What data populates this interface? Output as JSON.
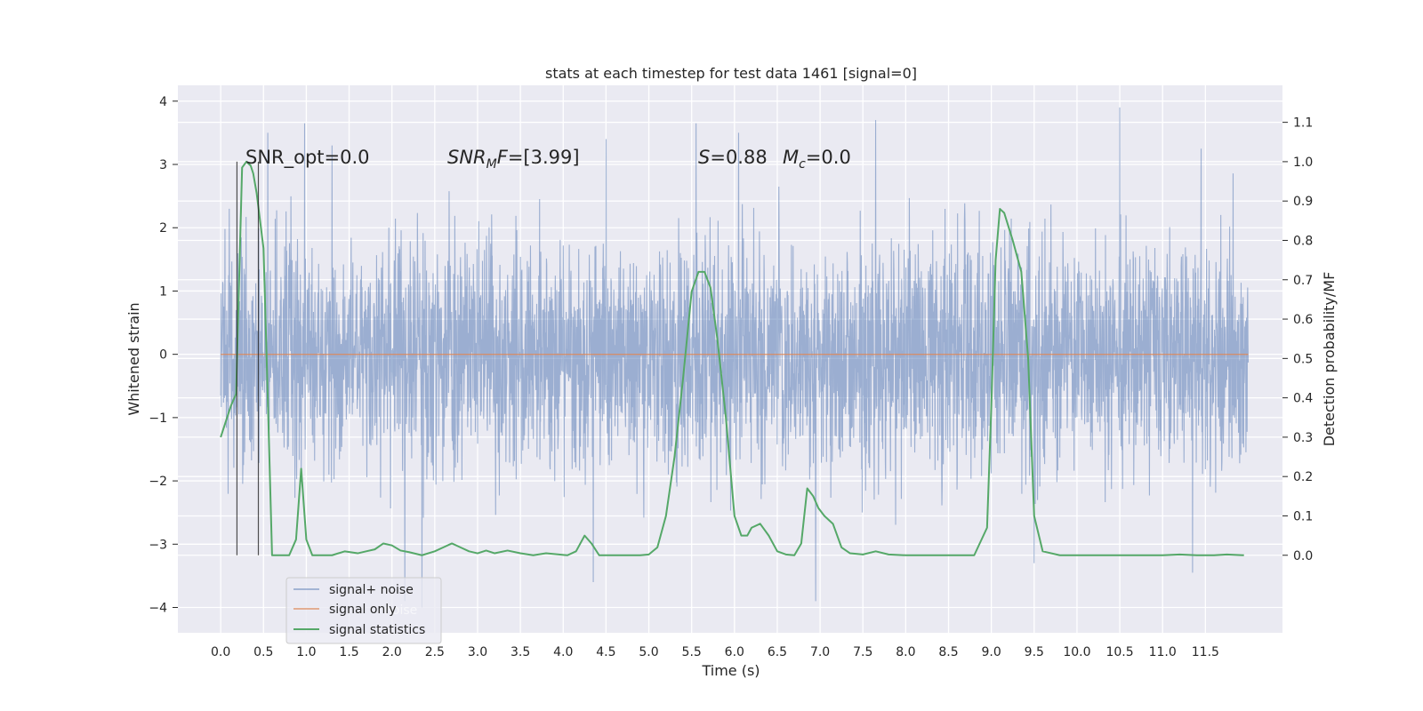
{
  "chart_data": {
    "type": "line",
    "title": "stats at each timestep for test data 1461 [signal=0]",
    "xlabel": "Time (s)",
    "ylabel": "Whitened strain",
    "y2label": "Detection probability/MF",
    "xlim": [
      -0.5,
      12.4
    ],
    "ylim": [
      -4.4,
      4.25
    ],
    "y2lim": [
      -0.197,
      1.194
    ],
    "x_ticks": [
      "0.0",
      "0.5",
      "1.0",
      "1.5",
      "2.0",
      "2.5",
      "3.0",
      "3.5",
      "4.0",
      "4.5",
      "5.0",
      "5.5",
      "6.0",
      "6.5",
      "7.0",
      "7.5",
      "8.0",
      "8.5",
      "9.0",
      "9.5",
      "10.0",
      "10.5",
      "11.0",
      "11.5"
    ],
    "y_ticks": [
      "4",
      "3",
      "2",
      "1",
      "0",
      "−1",
      "−2",
      "−3",
      "−4"
    ],
    "y2_ticks": [
      "1.1",
      "1.0",
      "0.9",
      "0.8",
      "0.7",
      "0.6",
      "0.5",
      "0.4",
      "0.3",
      "0.2",
      "0.1",
      "0.0"
    ],
    "grid": true,
    "legend_position": "lower-left",
    "colors": {
      "signal_noise": "#4c72b0",
      "signal_only": "#dd8452",
      "signal_statistics": "#55a868",
      "background": "#eaeaf2",
      "grid": "#ffffff",
      "vlines": "#262626"
    },
    "series": [
      {
        "name": "signal+ noise",
        "axis": "left",
        "x_range": [
          0.0,
          12.0
        ],
        "envelope_typical": [
          -1.8,
          1.9
        ],
        "peaks": [
          [
            0.1,
            2.3
          ],
          [
            0.55,
            3.5
          ],
          [
            0.98,
            3.65
          ],
          [
            1.3,
            3.3
          ],
          [
            2.15,
            -3.9
          ],
          [
            2.35,
            -4.0
          ],
          [
            4.35,
            -3.5
          ],
          [
            4.5,
            3.4
          ],
          [
            4.35,
            -3.6
          ],
          [
            5.55,
            3.65
          ],
          [
            6.05,
            3.5
          ],
          [
            6.95,
            -3.9
          ],
          [
            7.65,
            3.7
          ],
          [
            9.5,
            -3.3
          ],
          [
            10.5,
            3.9
          ],
          [
            11.35,
            -3.45
          ],
          [
            11.45,
            3.25
          ]
        ]
      },
      {
        "name": "signal only",
        "axis": "left",
        "x": [
          0.0,
          12.0
        ],
        "y": [
          0.0,
          0.0
        ]
      },
      {
        "name": "signal statistics",
        "axis": "right",
        "x": [
          0.0,
          0.12,
          0.18,
          0.25,
          0.3,
          0.35,
          0.38,
          0.42,
          0.46,
          0.5,
          0.55,
          0.6,
          0.66,
          0.7,
          0.8,
          0.88,
          0.94,
          1.0,
          1.07,
          1.15,
          1.3,
          1.45,
          1.6,
          1.7,
          1.8,
          1.9,
          2.0,
          2.1,
          2.2,
          2.35,
          2.5,
          2.6,
          2.7,
          2.8,
          2.9,
          3.0,
          3.1,
          3.2,
          3.35,
          3.5,
          3.65,
          3.8,
          3.95,
          4.05,
          4.15,
          4.25,
          4.33,
          4.42,
          4.52,
          4.7,
          4.9,
          5.0,
          5.1,
          5.2,
          5.3,
          5.4,
          5.5,
          5.58,
          5.65,
          5.72,
          5.8,
          5.9,
          6.0,
          6.08,
          6.15,
          6.2,
          6.3,
          6.4,
          6.5,
          6.6,
          6.7,
          6.78,
          6.85,
          6.92,
          6.98,
          7.05,
          7.15,
          7.25,
          7.35,
          7.5,
          7.65,
          7.8,
          8.0,
          8.5,
          8.8,
          8.95,
          9.0,
          9.05,
          9.1,
          9.15,
          9.25,
          9.35,
          9.43,
          9.5,
          9.6,
          9.8,
          10.2,
          10.7,
          11.0,
          11.2,
          11.4,
          11.6,
          11.75,
          11.95
        ],
        "y": [
          0.3,
          0.38,
          0.41,
          0.985,
          1.0,
          0.99,
          0.97,
          0.92,
          0.85,
          0.78,
          0.4,
          0.0,
          0.0,
          0.0,
          0.0,
          0.04,
          0.22,
          0.04,
          0.0,
          0.0,
          0.0,
          0.01,
          0.005,
          0.01,
          0.015,
          0.03,
          0.025,
          0.012,
          0.008,
          0.0,
          0.01,
          0.02,
          0.03,
          0.02,
          0.01,
          0.005,
          0.012,
          0.005,
          0.012,
          0.005,
          0.0,
          0.005,
          0.002,
          0.0,
          0.01,
          0.05,
          0.03,
          0.0,
          0.0,
          0.0,
          0.0,
          0.002,
          0.02,
          0.1,
          0.25,
          0.45,
          0.67,
          0.72,
          0.72,
          0.68,
          0.55,
          0.35,
          0.1,
          0.05,
          0.05,
          0.07,
          0.08,
          0.05,
          0.01,
          0.002,
          0.0,
          0.03,
          0.17,
          0.15,
          0.12,
          0.1,
          0.08,
          0.02,
          0.005,
          0.002,
          0.01,
          0.002,
          0.0,
          0.0,
          0.0,
          0.07,
          0.38,
          0.75,
          0.88,
          0.87,
          0.8,
          0.72,
          0.5,
          0.1,
          0.01,
          0.0,
          0.0,
          0.0,
          0.0,
          0.002,
          0.0,
          0.0,
          0.002,
          0.0
        ]
      }
    ],
    "vlines_x": [
      0.19,
      0.44
    ],
    "annotations": {
      "snr_opt": "SNR_opt=0.0",
      "snr_mf_a": "SNR",
      "snr_mf_sub": "M",
      "snr_mf_b": "F",
      "snr_mf_val": "=[3.99]",
      "s_sym": "S",
      "s_val": "=0.88",
      "mc_sym": "M",
      "mc_sub": "c",
      "mc_val": "=0.0"
    },
    "legend_ghost_text": "noise"
  }
}
